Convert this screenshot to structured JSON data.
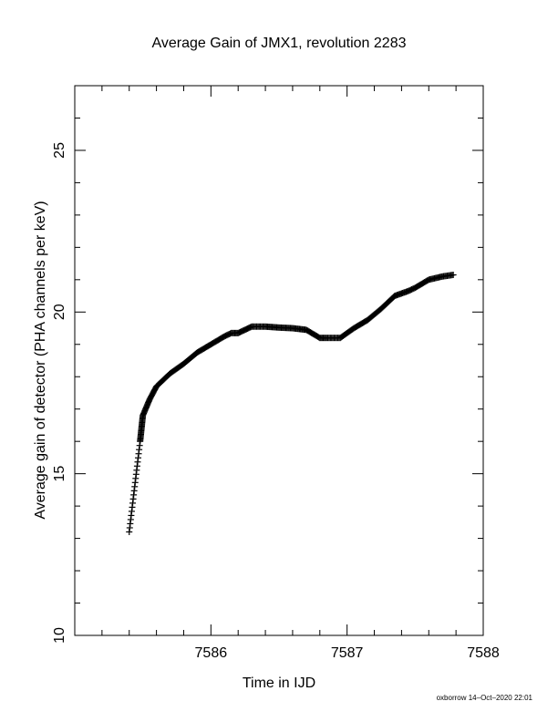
{
  "chart_data": {
    "type": "scatter",
    "title": "Average Gain of JMX1, revolution 2283",
    "xlabel": "Time in IJD",
    "ylabel": "Average gain of detector (PHA channels per keV)",
    "xlim": [
      7585.0,
      7588.0
    ],
    "ylim": [
      10,
      27
    ],
    "x_ticks": [
      "7586",
      "7587",
      "7588"
    ],
    "y_ticks": [
      "10",
      "15",
      "20",
      "25"
    ],
    "marker": "+",
    "series": [
      {
        "color": "#000000",
        "x": [
          7585.4,
          7585.48,
          7585.5,
          7585.55,
          7585.6,
          7585.7,
          7585.8,
          7585.9,
          7586.0,
          7586.1,
          7586.15,
          7586.2,
          7586.3,
          7586.4,
          7586.5,
          7586.6,
          7586.7,
          7586.8,
          7586.85,
          7586.95,
          7587.05,
          7587.15,
          7587.25,
          7587.35,
          7587.45,
          7587.5,
          7587.6,
          7587.7,
          7587.78
        ],
        "y": [
          13.2,
          16.0,
          16.8,
          17.3,
          17.7,
          18.1,
          18.4,
          18.75,
          19.0,
          19.25,
          19.35,
          19.35,
          19.55,
          19.55,
          19.52,
          19.5,
          19.45,
          19.2,
          19.2,
          19.2,
          19.5,
          19.75,
          20.1,
          20.5,
          20.65,
          20.75,
          21.0,
          21.1,
          21.15
        ]
      }
    ]
  },
  "footer": "oxborrow 14–Oct–2020 22:01"
}
